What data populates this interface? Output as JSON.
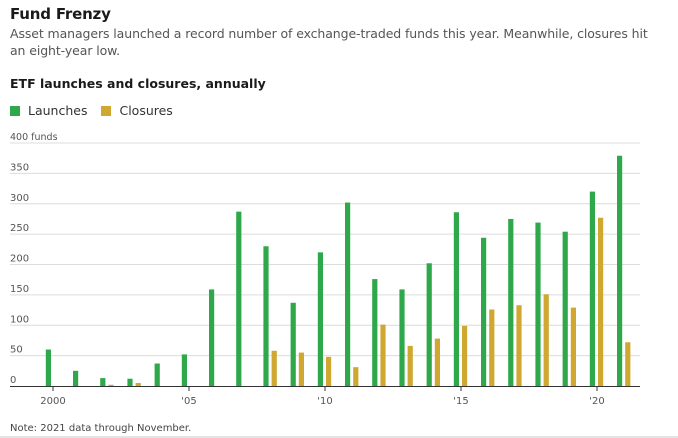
{
  "header": {
    "title": "Fund Frenzy",
    "subtitle": "Asset managers launched a record number of exchange-traded funds this year. Meanwhile, closures hit an eight-year low."
  },
  "chart_title": "ETF launches and closures, annually",
  "footer": {
    "note": "Note: 2021 data through November."
  },
  "colors": {
    "launches": "#2ea84a",
    "closures": "#cfa731"
  },
  "chart_data": {
    "type": "bar",
    "title": "ETF launches and closures, annually",
    "xlabel": "",
    "ylabel": "funds",
    "ylim": [
      0,
      400
    ],
    "yticks": [
      0,
      50,
      100,
      150,
      200,
      250,
      300,
      350,
      400
    ],
    "ytick_labels": [
      "0",
      "50",
      "100",
      "150",
      "200",
      "250",
      "300",
      "350",
      "400 funds"
    ],
    "categories": [
      2000,
      2001,
      2002,
      2003,
      2004,
      2005,
      2006,
      2007,
      2008,
      2009,
      2010,
      2011,
      2012,
      2013,
      2014,
      2015,
      2016,
      2017,
      2018,
      2019,
      2020,
      2021
    ],
    "xtick_values": [
      2000,
      2005,
      2010,
      2015,
      2020
    ],
    "xtick_labels": [
      "2000",
      "'05",
      "'10",
      "'15",
      "'20"
    ],
    "legend": "top-left",
    "series": [
      {
        "name": "Launches",
        "values": [
          60,
          25,
          13,
          12,
          37,
          52,
          159,
          287,
          230,
          137,
          220,
          302,
          176,
          159,
          202,
          286,
          244,
          275,
          269,
          254,
          320,
          379
        ]
      },
      {
        "name": "Closures",
        "values": [
          0,
          0,
          2,
          5,
          0,
          0,
          0,
          0,
          58,
          55,
          48,
          31,
          101,
          66,
          78,
          99,
          126,
          133,
          151,
          129,
          277,
          72
        ]
      }
    ]
  }
}
